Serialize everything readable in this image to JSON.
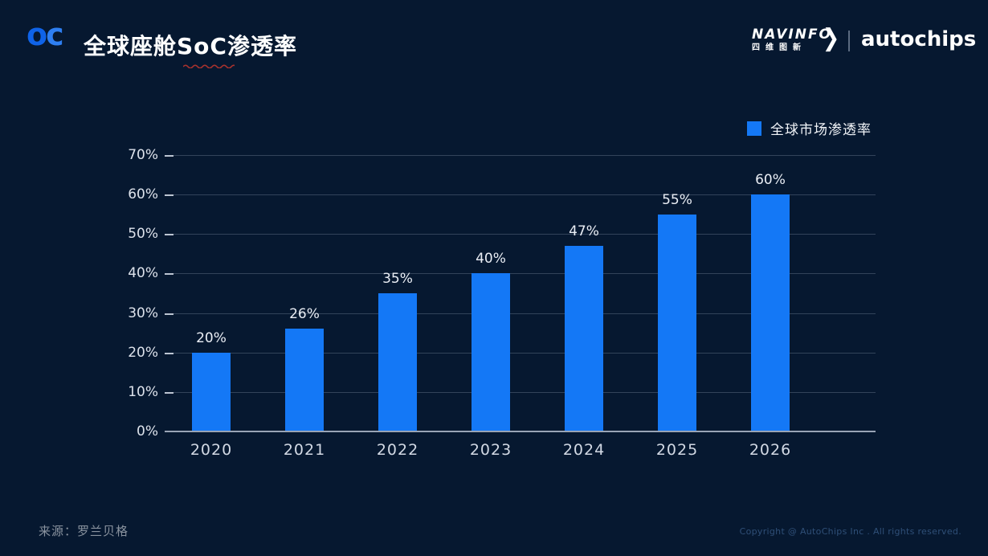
{
  "header": {
    "logo_o": "o",
    "logo_c": "c",
    "title_prefix": "全球座舱",
    "title_soc": "SoC",
    "title_suffix": "渗透率"
  },
  "brand": {
    "navinfo_en": "NAVINFO",
    "navinfo_cn": "四维图新",
    "chevron": "❯",
    "autochips": "autochips"
  },
  "legend": {
    "label": "全球市场渗透率"
  },
  "chart_data": {
    "type": "bar",
    "title": "全球座舱SoC渗透率",
    "categories": [
      "2020",
      "2021",
      "2022",
      "2023",
      "2024",
      "2025",
      "2026"
    ],
    "values": [
      20,
      26,
      35,
      40,
      47,
      55,
      60
    ],
    "data_labels": [
      "20%",
      "26%",
      "35%",
      "40%",
      "47%",
      "55%",
      "60%"
    ],
    "series_name": "全球市场渗透率",
    "xlabel": "",
    "ylabel": "",
    "ylim": [
      0,
      70
    ],
    "ytick_step": 10,
    "ytick_labels": [
      "0%",
      "10%",
      "20%",
      "30%",
      "40%",
      "50%",
      "60%",
      "70%"
    ],
    "grid": true,
    "legend_position": "top-right",
    "bar_color": "#1478f6"
  },
  "colors": {
    "background": "#061830",
    "bar": "#1478f6",
    "accent_logo_o": "#0f63e8",
    "accent_logo_c": "#2e7ff2",
    "squiggle_red": "#a8322e"
  },
  "footer": {
    "source": "来源：罗兰贝格",
    "copyright": "Copyright @ AutoChips Inc . All rights reserved."
  }
}
